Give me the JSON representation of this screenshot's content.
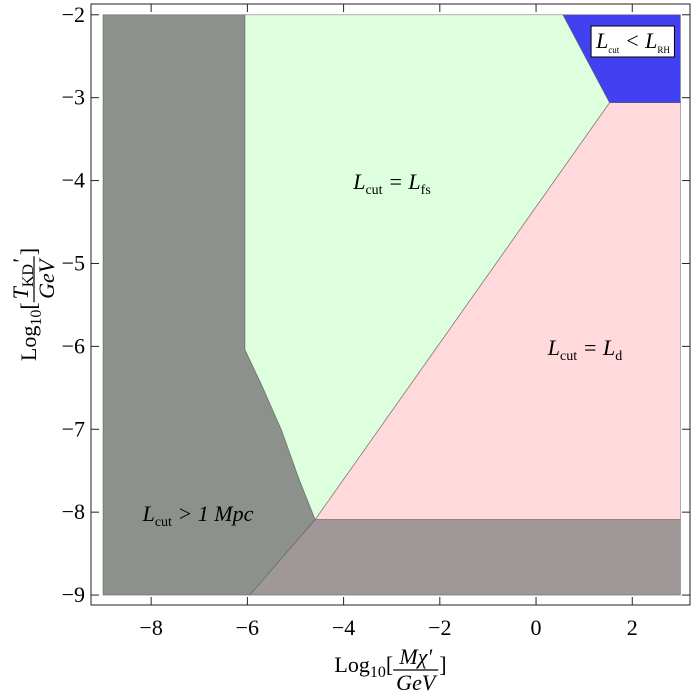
{
  "chart_data": {
    "type": "region",
    "x_label": {
      "lead": [
        {
          "text": "Log"
        },
        {
          "text": "10",
          "sub": true
        },
        {
          "text": "["
        }
      ],
      "num": [
        {
          "text": "Mχ'"
        }
      ],
      "den": [
        {
          "text": "GeV"
        }
      ],
      "tail": [
        {
          "text": "]"
        }
      ]
    },
    "y_label": {
      "lead": [
        {
          "text": "Log"
        },
        {
          "text": "10",
          "sub": true
        },
        {
          "text": "["
        }
      ],
      "num": [
        {
          "text": "T"
        },
        {
          "text": "KD",
          "sub": true
        },
        {
          "text": "'"
        }
      ],
      "den": [
        {
          "text": "GeV"
        }
      ],
      "tail": [
        {
          "text": "]"
        }
      ]
    },
    "xlim": [
      -9.25,
      3.2
    ],
    "ylim": [
      -9.12,
      -1.87
    ],
    "xticks": [
      {
        "value": -8,
        "label": "−8"
      },
      {
        "value": -6,
        "label": "−6"
      },
      {
        "value": -4,
        "label": "−4"
      },
      {
        "value": -2,
        "label": "−2"
      },
      0,
      2
    ],
    "yticks": [
      {
        "value": -2,
        "label": "−2"
      },
      {
        "value": -3,
        "label": "−3"
      },
      {
        "value": -4,
        "label": "−4"
      },
      {
        "value": -5,
        "label": "−5"
      },
      {
        "value": -6,
        "label": "−6"
      },
      {
        "value": -7,
        "label": "−7"
      },
      {
        "value": -8,
        "label": "−8"
      },
      {
        "value": -9,
        "label": "−9"
      }
    ],
    "regions": [
      {
        "color": "#8c918c",
        "x": [
          -9,
          -6.05,
          -6.05,
          -5.7,
          -5.29,
          -4.92,
          -4.59,
          -5.95,
          -9
        ],
        "y": [
          -2,
          -2,
          -6.04,
          -6.47,
          -7.01,
          -7.61,
          -8.09,
          -9,
          -9
        ],
        "label": [
          {
            "text": "L"
          },
          {
            "text": "cut",
            "sub": true
          },
          {
            "text": " > 1 Mpc"
          }
        ]
      },
      {
        "color": "#ddffdd",
        "x": [
          -6.05,
          0.56,
          1.53,
          -4.59,
          -4.92,
          -5.29,
          -5.7,
          -6.05
        ],
        "y": [
          -2,
          -2,
          -3.06,
          -8.09,
          -7.61,
          -7.01,
          -6.47,
          -6.04
        ],
        "label": [
          {
            "text": "L"
          },
          {
            "text": "cut",
            "sub": true
          },
          {
            "text": " = L"
          },
          {
            "text": "fs",
            "sub": true
          }
        ]
      },
      {
        "color": "#ffd9dc",
        "x": [
          1.53,
          3,
          3,
          -4.59
        ],
        "y": [
          -3.06,
          -3.06,
          -8.09,
          -8.09
        ],
        "label": [
          {
            "text": "L"
          },
          {
            "text": "cut",
            "sub": true
          },
          {
            "text": " = L"
          },
          {
            "text": "d",
            "sub": true
          }
        ]
      },
      {
        "color": "#4141f2",
        "x": [
          0.56,
          3,
          3,
          1.53
        ],
        "y": [
          -2,
          -2,
          -3.06,
          -3.06
        ],
        "label": [
          {
            "text": "L"
          },
          {
            "text": "cut",
            "sub": true
          },
          {
            "text": " < L"
          },
          {
            "text": "RH",
            "sub": true
          }
        ]
      },
      {
        "color": "#a09898",
        "x": [
          -4.59,
          3,
          3,
          -5.95
        ],
        "y": [
          -8.09,
          -8.09,
          -9,
          -9
        ]
      }
    ]
  }
}
